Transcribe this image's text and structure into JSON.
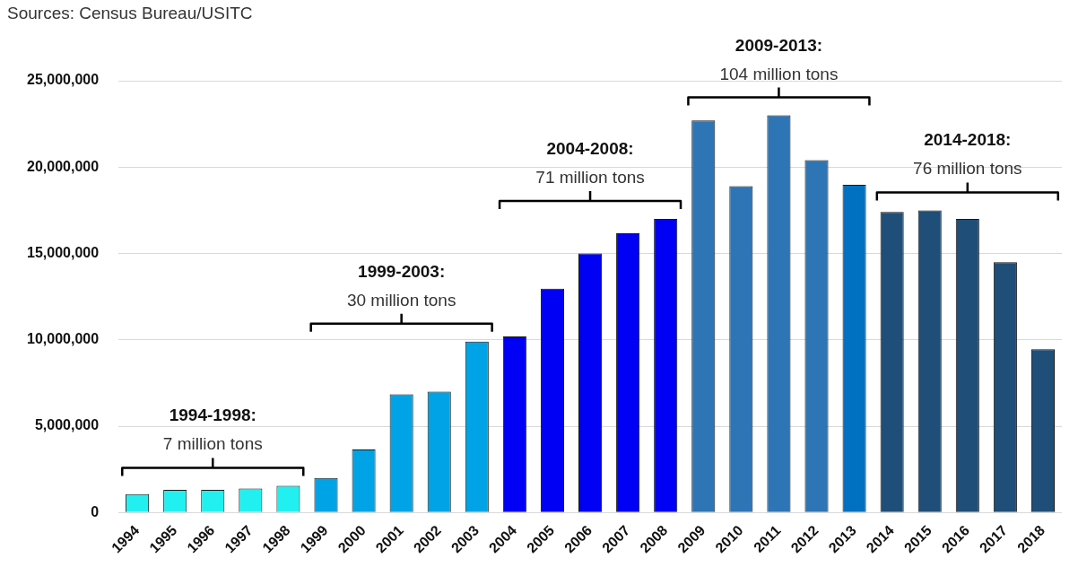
{
  "chart_data": {
    "type": "bar",
    "categories": [
      "1994",
      "1995",
      "1996",
      "1997",
      "1998",
      "1999",
      "2000",
      "2001",
      "2002",
      "2003",
      "2004",
      "2005",
      "2006",
      "2007",
      "2008",
      "2009",
      "2010",
      "2011",
      "2012",
      "2013",
      "2014",
      "2015",
      "2016",
      "2017",
      "2018"
    ],
    "values": [
      1070000,
      1310000,
      1310000,
      1390000,
      1550000,
      2000000,
      3650000,
      6850000,
      7000000,
      9900000,
      10200000,
      12960000,
      15000000,
      16170000,
      17000000,
      22700000,
      18900000,
      23000000,
      20400000,
      18970000,
      17400000,
      17500000,
      17000000,
      14500000,
      9450000
    ],
    "colors": [
      "#22f0f0",
      "#22f0f0",
      "#22f0f0",
      "#22f0f0",
      "#22f0f0",
      "#00a4e6",
      "#00a4e6",
      "#00a4e6",
      "#00a4e6",
      "#00a4e6",
      "#0000f5",
      "#0000f5",
      "#0000f5",
      "#0000f5",
      "#0000f5",
      "#2e75b6",
      "#2e75b6",
      "#2e75b6",
      "#2e75b6",
      "#0070c0",
      "#1f4e79",
      "#1f4e79",
      "#1f4e79",
      "#1f4e79",
      "#1f4e79"
    ],
    "ylim": [
      0,
      25000000
    ],
    "yticks": [
      {
        "value": 0,
        "label": "0"
      },
      {
        "value": 5000000,
        "label": "5,000,000"
      },
      {
        "value": 10000000,
        "label": "10,000,000"
      },
      {
        "value": 15000000,
        "label": "15,000,000"
      },
      {
        "value": 20000000,
        "label": "20,000,000"
      },
      {
        "value": 25000000,
        "label": "25,000,000"
      }
    ],
    "grid": "y",
    "legend": false,
    "annotations": [
      "Sources: Census Bureau/USITC",
      "1994-1998: 7 million tons",
      "1999-2003: 30 million tons",
      "2004-2008: 71 million tons",
      "2009-2013: 104 million tons",
      "2014-2018: 76 million tons"
    ]
  }
}
